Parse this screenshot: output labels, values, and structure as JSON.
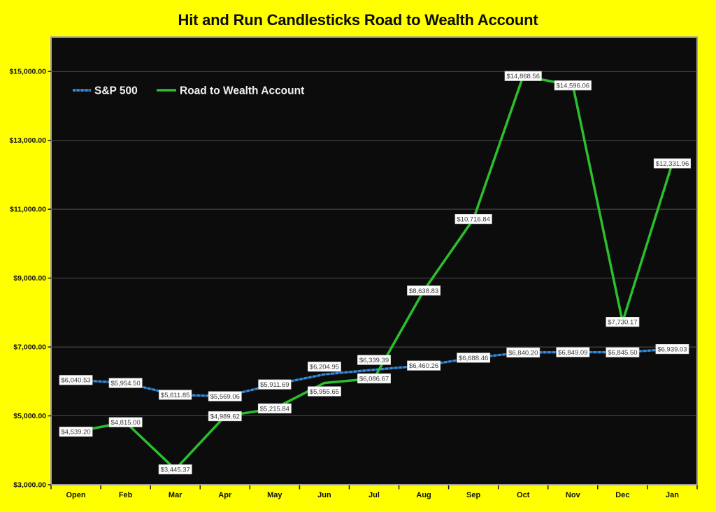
{
  "title": "Hit and Run Candlesticks Road to Wealth Account",
  "colors": {
    "canvas_background": "#FFFF00",
    "plot_background": "#0C0C0C",
    "plot_border": "#9E9E9E",
    "gridline": "#4F4F4F",
    "sp500_line_base": "#1D5D99",
    "sp500_line_dash": "#3E8BD4",
    "rtw_line": "#2CBF2C",
    "axis_tick": "#1a1a1a",
    "data_label_box_fill": "#FDFDFD",
    "data_label_box_border": "#C8C8C8",
    "data_label_text": "#3d3d3d",
    "legend_text": "#F2F2F2",
    "title_text": "#0D0D0D"
  },
  "legend": {
    "items": [
      {
        "label": "S&P 500",
        "swatch": "dashed-blue-line"
      },
      {
        "label": "Road to Wealth Account",
        "swatch": "solid-green-line"
      }
    ],
    "position": "top-left-inside"
  },
  "chart_data": {
    "type": "line",
    "title": "Hit and Run Candlesticks Road to Wealth Account",
    "categories": [
      "Open",
      "Feb",
      "Mar",
      "Apr",
      "May",
      "Jun",
      "Jul",
      "Aug",
      "Sep",
      "Oct",
      "Nov",
      "Dec",
      "Jan"
    ],
    "series": [
      {
        "name": "S&P 500",
        "style": "dashed",
        "color": "#3E8BD4",
        "values": [
          6040.53,
          5954.5,
          5611.85,
          5569.06,
          5911.69,
          6204.95,
          6339.39,
          6460.26,
          6688.46,
          6840.2,
          6849.09,
          6845.5,
          6939.03
        ],
        "data_labels": [
          "$6,040.53",
          "$5,954.50",
          "$5,611.85",
          "$5,569.06",
          "$5,911.69",
          "$6,204.95",
          "$6,339.39",
          "$6,460.26",
          "$6,688.46",
          "$6,840.20",
          "$6,849.09",
          "$6,845.50",
          "$6,939.03"
        ]
      },
      {
        "name": "Road to Wealth Account",
        "style": "solid",
        "color": "#2CBF2C",
        "values": [
          4539.2,
          4815.0,
          3445.37,
          4989.62,
          5215.84,
          5955.65,
          6086.67,
          8638.83,
          10716.84,
          14868.56,
          14596.06,
          7730.17,
          12331.96
        ],
        "data_labels": [
          "$4,539.20",
          "$4,815.00",
          "$3,445.37",
          "$4,989.62",
          "$5,215.84",
          "$5,955.65",
          "$6,086.67",
          "$8,638.83",
          "$10,716.84",
          "$14,868.56",
          "$14,596.06",
          "$7,730.17",
          "$12,331.96"
        ]
      }
    ],
    "y_axis": {
      "min": 3000,
      "max": 16000,
      "tick_interval": 2000,
      "ticks": [
        {
          "value": 3000,
          "label": "$3,000.00"
        },
        {
          "value": 5000,
          "label": "$5,000.00"
        },
        {
          "value": 7000,
          "label": "$7,000.00"
        },
        {
          "value": 9000,
          "label": "$9,000.00"
        },
        {
          "value": 11000,
          "label": "$11,000.00"
        },
        {
          "value": 13000,
          "label": "$13,000.00"
        },
        {
          "value": 15000,
          "label": "$15,000.00"
        }
      ]
    },
    "grid": true,
    "legend_position": "top-left-inside"
  }
}
